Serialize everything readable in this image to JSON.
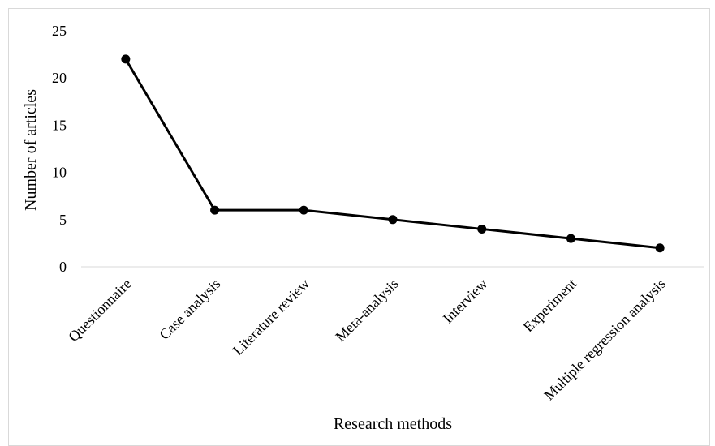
{
  "chart_data": {
    "type": "line",
    "title": "",
    "xlabel": "Research methods",
    "ylabel": "Number of articles",
    "categories": [
      "Questionnaire",
      "Case analysis",
      "Literature review",
      "Meta-analysis",
      "Interview",
      "Experiment",
      "Multiple regression analysis"
    ],
    "series": [
      {
        "values": [
          22,
          6,
          6,
          5,
          4,
          3,
          2
        ]
      }
    ],
    "ylim": [
      0,
      25
    ],
    "yticks": [
      "0",
      "5",
      "10",
      "15",
      "20",
      "25"
    ],
    "grid": false,
    "legend": "none",
    "colors": {
      "line": "#000000",
      "axis": "#d9d9d9"
    }
  }
}
